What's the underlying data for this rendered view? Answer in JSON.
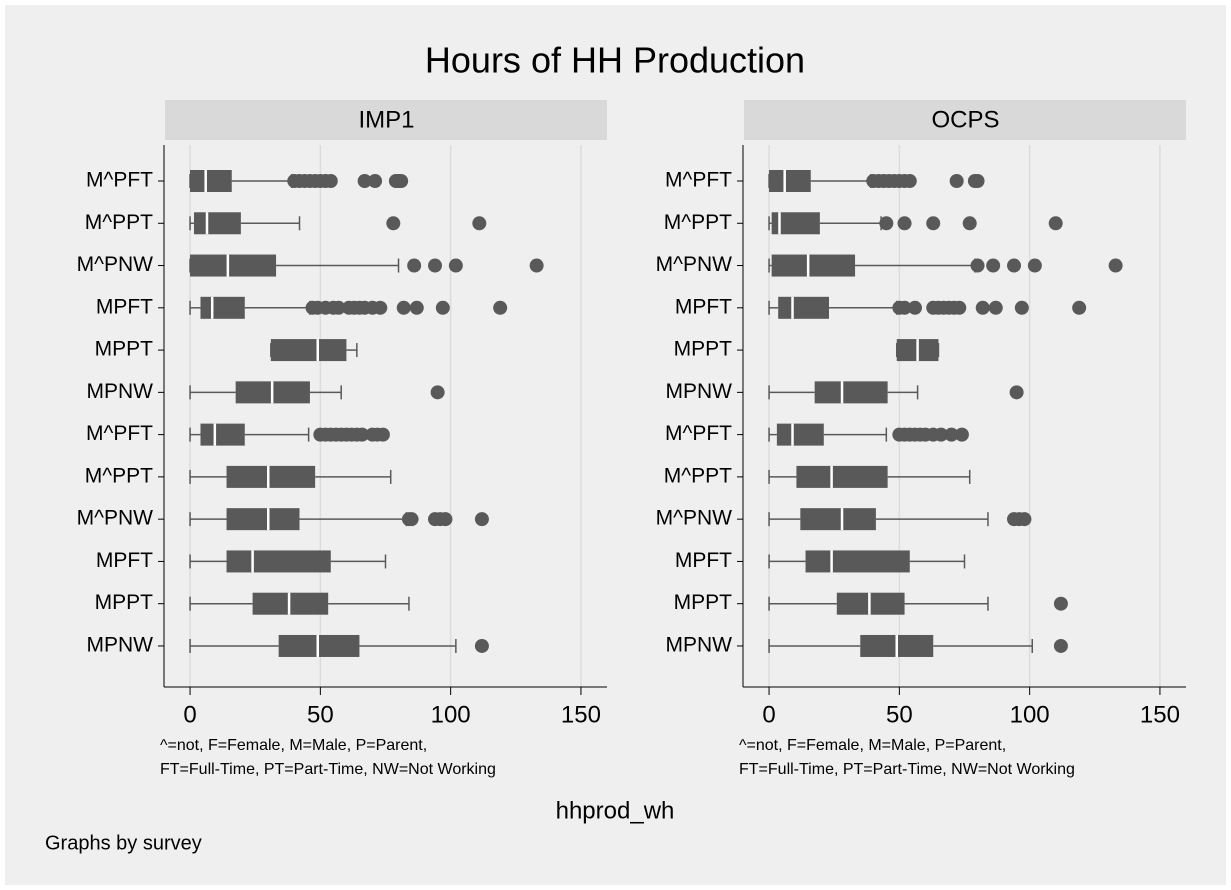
{
  "title": "Hours of HH Production",
  "xlabel": "hhprod_wh",
  "note": "Graphs by survey",
  "chart_data": [
    {
      "type": "box",
      "title": "IMP1",
      "color": "#595959",
      "notes": [
        "^=not, F=Female, M=Male, P=Parent,",
        "FT=Full-Time, PT=Part-Time, NW=Not Working"
      ],
      "xlim": [
        -10,
        160
      ],
      "xticks": [
        0,
        50,
        100,
        150
      ],
      "grid": true,
      "categories": [
        "M^PFT",
        "M^PPT",
        "M^PNW",
        "MPFT",
        "MPPT",
        "MPNW",
        "M^PFT",
        "M^PPT",
        "M^PNW",
        "MPFT",
        "MPPT",
        "MPNW"
      ],
      "boxes": [
        {
          "min": 0,
          "q1": 0,
          "median": 6,
          "q3": 16,
          "max": 39,
          "outliers": [
            40,
            42,
            44,
            46,
            48,
            50,
            52,
            54,
            67,
            71,
            79,
            80,
            81
          ]
        },
        {
          "min": 0,
          "q1": 1.5,
          "median": 6.5,
          "q3": 19.5,
          "max": 42,
          "outliers": [
            78,
            111
          ]
        },
        {
          "min": 0,
          "q1": 0,
          "median": 14.5,
          "q3": 33,
          "max": 80,
          "outliers": [
            86,
            94,
            102,
            133
          ]
        },
        {
          "min": 0,
          "q1": 4,
          "median": 8.5,
          "q3": 21,
          "max": 46,
          "outliers": [
            47,
            49,
            52,
            55,
            57,
            61,
            63,
            65,
            67,
            70,
            73,
            82,
            87,
            97,
            119
          ]
        },
        {
          "min": 31,
          "q1": 31,
          "median": 49,
          "q3": 60,
          "max": 64,
          "outliers": []
        },
        {
          "min": 0,
          "q1": 17.5,
          "median": 31.5,
          "q3": 46,
          "max": 58,
          "outliers": [
            95
          ]
        },
        {
          "min": 0,
          "q1": 4,
          "median": 9.5,
          "q3": 21,
          "max": 45.5,
          "outliers": [
            50,
            52,
            54,
            56,
            58,
            60,
            62,
            64,
            66,
            70,
            72,
            74
          ]
        },
        {
          "min": 0,
          "q1": 14,
          "median": 30,
          "q3": 48,
          "max": 77,
          "outliers": []
        },
        {
          "min": 0,
          "q1": 14,
          "median": 30,
          "q3": 42,
          "max": 83,
          "outliers": [
            84,
            85,
            94,
            96,
            98,
            112
          ]
        },
        {
          "min": 0,
          "q1": 14,
          "median": 24,
          "q3": 54,
          "max": 75,
          "outliers": []
        },
        {
          "min": 0,
          "q1": 24,
          "median": 38,
          "q3": 53,
          "max": 84,
          "outliers": []
        },
        {
          "min": 0,
          "q1": 34,
          "median": 49,
          "q3": 65,
          "max": 102,
          "outliers": [
            112
          ]
        }
      ]
    },
    {
      "type": "box",
      "title": "OCPS",
      "color": "#595959",
      "notes": [
        "^=not, F=Female, M=Male, P=Parent,",
        "FT=Full-Time, PT=Part-Time, NW=Not Working"
      ],
      "xlim": [
        -10,
        160
      ],
      "xticks": [
        0,
        50,
        100,
        150
      ],
      "grid": true,
      "categories": [
        "M^PFT",
        "M^PPT",
        "M^PNW",
        "MPFT",
        "MPPT",
        "MPNW",
        "M^PFT",
        "M^PPT",
        "M^PNW",
        "MPFT",
        "MPPT",
        "MPNW"
      ],
      "boxes": [
        {
          "min": 0,
          "q1": 0,
          "median": 6,
          "q3": 16,
          "max": 39,
          "outliers": [
            40,
            42,
            44,
            46,
            48,
            50,
            52,
            54,
            72,
            79,
            80
          ]
        },
        {
          "min": 0,
          "q1": 1,
          "median": 4,
          "q3": 19.5,
          "max": 43,
          "outliers": [
            45,
            52,
            63,
            77,
            110
          ]
        },
        {
          "min": 0,
          "q1": 1,
          "median": 15,
          "q3": 33,
          "max": 79,
          "outliers": [
            80,
            86,
            94,
            102,
            133
          ]
        },
        {
          "min": 0,
          "q1": 3.5,
          "median": 9,
          "q3": 23,
          "max": 49,
          "outliers": [
            50,
            52,
            56,
            63,
            65,
            67,
            69,
            71,
            73,
            82,
            87,
            97,
            119
          ]
        },
        {
          "min": 49,
          "q1": 49,
          "median": 57,
          "q3": 65,
          "max": 65,
          "outliers": []
        },
        {
          "min": 0,
          "q1": 17.5,
          "median": 28,
          "q3": 45.5,
          "max": 57,
          "outliers": [
            95
          ]
        },
        {
          "min": 0,
          "q1": 3,
          "median": 9,
          "q3": 21,
          "max": 45,
          "outliers": [
            50,
            52,
            54,
            56,
            58,
            60,
            63,
            66,
            70,
            74
          ]
        },
        {
          "min": 0,
          "q1": 10.5,
          "median": 24,
          "q3": 45.5,
          "max": 77,
          "outliers": []
        },
        {
          "min": 0,
          "q1": 12,
          "median": 28,
          "q3": 41,
          "max": 84,
          "outliers": [
            94,
            96,
            98
          ]
        },
        {
          "min": 0,
          "q1": 14,
          "median": 24,
          "q3": 54,
          "max": 75,
          "outliers": []
        },
        {
          "min": 0,
          "q1": 26,
          "median": 38.5,
          "q3": 52,
          "max": 84,
          "outliers": [
            112
          ]
        },
        {
          "min": 0,
          "q1": 35,
          "median": 49,
          "q3": 63,
          "max": 101,
          "outliers": [
            112
          ]
        }
      ]
    }
  ]
}
